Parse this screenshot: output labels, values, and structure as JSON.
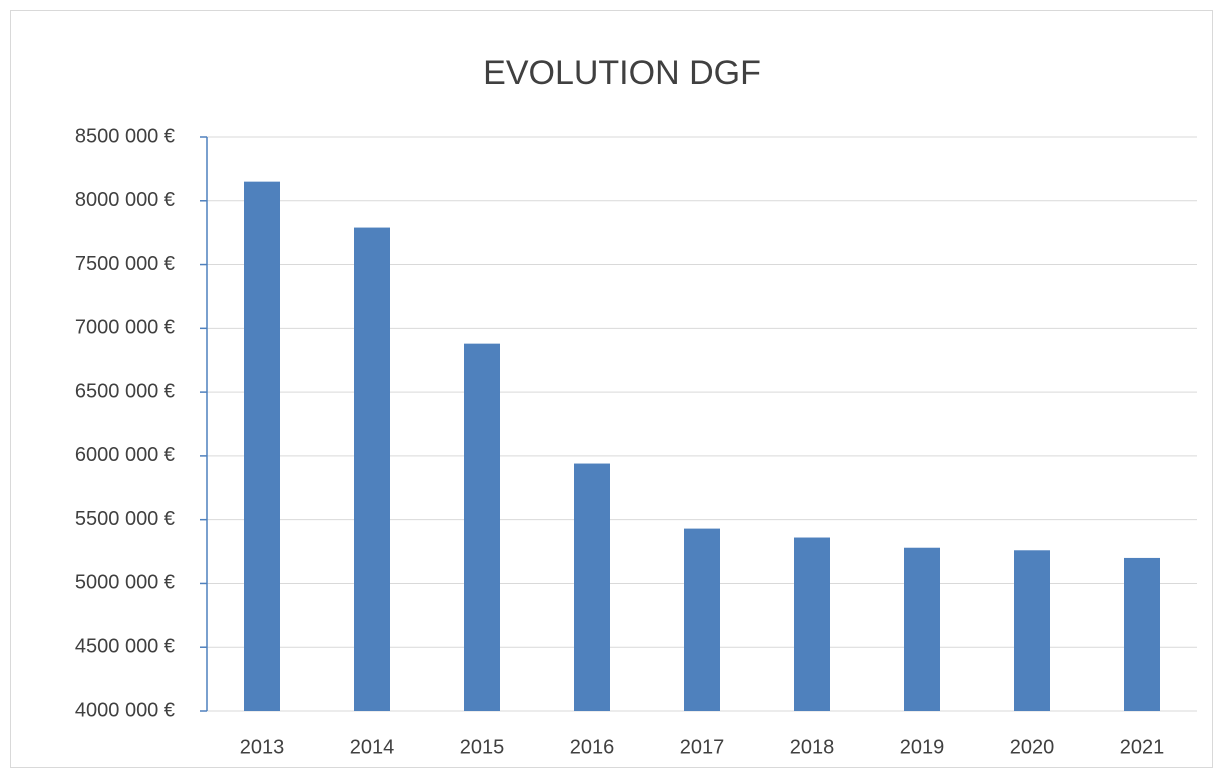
{
  "chart_data": {
    "type": "bar",
    "title": "EVOLUTION DGF",
    "categories": [
      "2013",
      "2014",
      "2015",
      "2016",
      "2017",
      "2018",
      "2019",
      "2020",
      "2021"
    ],
    "values": [
      8150000,
      7790000,
      6880000,
      5940000,
      5430000,
      5360000,
      5280000,
      5260000,
      5200000
    ],
    "color": "#4f81bd",
    "axis_color": "#4f81bd",
    "ylim": [
      4000000,
      8500000
    ],
    "yticks": [
      {
        "value": 4000000,
        "label": "4000 000 €"
      },
      {
        "value": 4500000,
        "label": "4500 000 €"
      },
      {
        "value": 5000000,
        "label": "5000 000 €"
      },
      {
        "value": 5500000,
        "label": "5500 000 €"
      },
      {
        "value": 6000000,
        "label": "6000 000 €"
      },
      {
        "value": 6500000,
        "label": "6500 000 €"
      },
      {
        "value": 7000000,
        "label": "7000 000 €"
      },
      {
        "value": 7500000,
        "label": "7500 000 €"
      },
      {
        "value": 8000000,
        "label": "8000 000 €"
      },
      {
        "value": 8500000,
        "label": "8500 000 €"
      }
    ],
    "grid": true
  }
}
